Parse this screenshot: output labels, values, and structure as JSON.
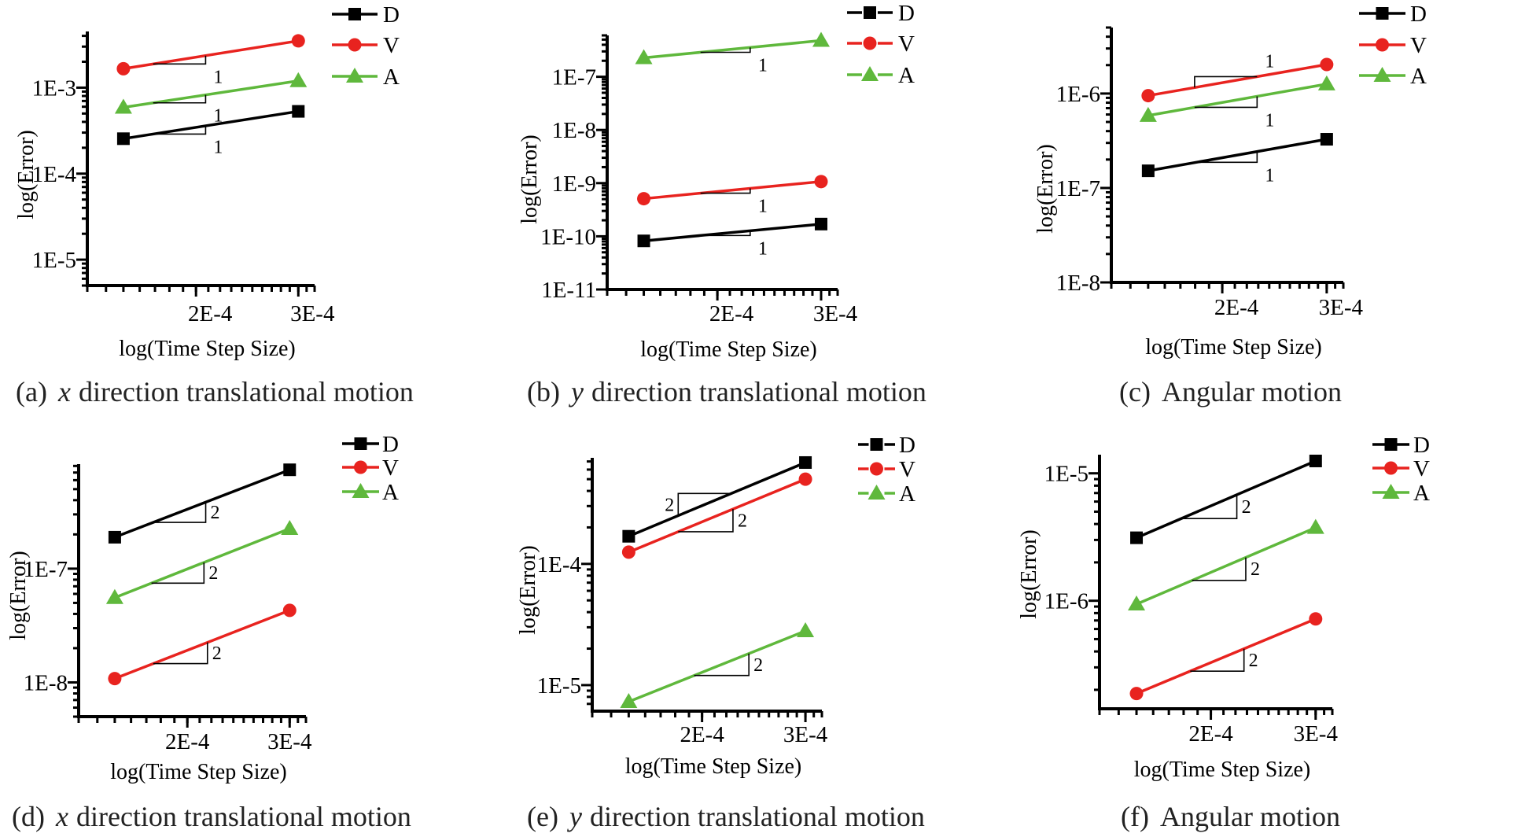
{
  "colors": {
    "D": "#000000",
    "V": "#e8231f",
    "A": "#5fb83c"
  },
  "chart_data": [
    {
      "type": "line",
      "panel": "a",
      "caption": {
        "label": "(a)",
        "variable": "x",
        "text": "direction translational motion"
      },
      "xlabel": "log(Time Step Size)",
      "ylabel": "log(Error)",
      "xscale": "log",
      "yscale": "log",
      "xlim": [
        0.00013,
        0.00032
      ],
      "ylim": [
        5e-06,
        0.0045
      ],
      "xticks": [
        {
          "value": 0.0002,
          "label": "2E-4"
        },
        {
          "value": 0.0003,
          "label": "3E-4"
        }
      ],
      "yticks": [
        {
          "value": 1e-05,
          "label": "1E-5"
        },
        {
          "value": 0.0001,
          "label": "1E-4"
        },
        {
          "value": 0.001,
          "label": "1E-3"
        }
      ],
      "legend": "top-right",
      "x": [
        0.00015,
        0.0003
      ],
      "series": [
        {
          "name": "D",
          "marker": "square",
          "values": [
            0.000255,
            0.00053
          ],
          "slope_label": "1"
        },
        {
          "name": "V",
          "marker": "circle",
          "values": [
            0.00166,
            0.0035
          ],
          "slope_label": "1"
        },
        {
          "name": "A",
          "marker": "triangle",
          "values": [
            0.00059,
            0.0012
          ],
          "slope_label": "1"
        }
      ]
    },
    {
      "type": "line",
      "panel": "b",
      "caption": {
        "label": "(b)",
        "variable": "y",
        "text": "direction translational motion"
      },
      "xlabel": "log(Time Step Size)",
      "ylabel": "log(Error)",
      "xscale": "log",
      "yscale": "log",
      "xlim": [
        0.00013,
        0.00032
      ],
      "ylim": [
        1e-11,
        6e-07
      ],
      "xticks": [
        {
          "value": 0.0002,
          "label": "2E-4"
        },
        {
          "value": 0.0003,
          "label": "3E-4"
        }
      ],
      "yticks": [
        {
          "value": 1e-11,
          "label": "1E-11"
        },
        {
          "value": 1e-10,
          "label": "1E-10"
        },
        {
          "value": 1e-09,
          "label": "1E-9"
        },
        {
          "value": 1e-08,
          "label": "1E-8"
        },
        {
          "value": 1e-07,
          "label": "1E-7"
        }
      ],
      "legend": "top-right",
      "x": [
        0.00015,
        0.0003
      ],
      "series": [
        {
          "name": "D",
          "marker": "square",
          "values": [
            8.2e-11,
            1.7e-10
          ],
          "slope_label": "1"
        },
        {
          "name": "V",
          "marker": "circle",
          "values": [
            5.1e-10,
            1.07e-09
          ],
          "slope_label": "1"
        },
        {
          "name": "A",
          "marker": "triangle",
          "values": [
            2.27e-07,
            4.8e-07
          ],
          "slope_label": "1"
        }
      ]
    },
    {
      "type": "line",
      "panel": "c",
      "caption": {
        "label": "(c)",
        "variable": "",
        "text": "Angular motion"
      },
      "xlabel": "log(Time Step Size)",
      "ylabel": "log(Error)",
      "xscale": "log",
      "yscale": "log",
      "xlim": [
        0.00013,
        0.00032
      ],
      "ylim": [
        1e-08,
        5e-06
      ],
      "xticks": [
        {
          "value": 0.0002,
          "label": "2E-4"
        },
        {
          "value": 0.0003,
          "label": "3E-4"
        }
      ],
      "yticks": [
        {
          "value": 1e-08,
          "label": "1E-8"
        },
        {
          "value": 1e-07,
          "label": "1E-7"
        },
        {
          "value": 1e-06,
          "label": "1E-6"
        }
      ],
      "legend": "top-right",
      "x": [
        0.00015,
        0.0003
      ],
      "series": [
        {
          "name": "D",
          "marker": "square",
          "values": [
            1.52e-07,
            3.28e-07
          ],
          "slope_label": "1"
        },
        {
          "name": "V",
          "marker": "circle",
          "values": [
            9.5e-07,
            2.03e-06
          ],
          "slope_label": "1"
        },
        {
          "name": "A",
          "marker": "triangle",
          "values": [
            5.85e-07,
            1.26e-06
          ],
          "slope_label": "1"
        }
      ]
    },
    {
      "type": "line",
      "panel": "d",
      "caption": {
        "label": "(d)",
        "variable": "x",
        "text": "direction translational motion"
      },
      "xlabel": "log(Time Step Size)",
      "ylabel": "log(Error)",
      "xscale": "log",
      "yscale": "log",
      "xlim": [
        0.00013,
        0.00032
      ],
      "ylim": [
        5e-09,
        8.3e-07
      ],
      "xticks": [
        {
          "value": 0.0002,
          "label": "2E-4"
        },
        {
          "value": 0.0003,
          "label": "3E-4"
        }
      ],
      "yticks": [
        {
          "value": 1e-08,
          "label": "1E-8"
        },
        {
          "value": 1e-07,
          "label": "1E-7"
        }
      ],
      "legend": "top-right",
      "x": [
        0.00015,
        0.0003
      ],
      "series": [
        {
          "name": "D",
          "marker": "square",
          "values": [
            1.89e-07,
            7.4e-07
          ],
          "slope_label": "2"
        },
        {
          "name": "V",
          "marker": "circle",
          "values": [
            1.08e-08,
            4.3e-08
          ],
          "slope_label": "2"
        },
        {
          "name": "A",
          "marker": "triangle",
          "values": [
            5.56e-08,
            2.25e-07
          ],
          "slope_label": "2"
        }
      ]
    },
    {
      "type": "line",
      "panel": "e",
      "caption": {
        "label": "(e)",
        "variable": "y",
        "text": "direction translational motion"
      },
      "xlabel": "log(Time Step Size)",
      "ylabel": "log(Error)",
      "xscale": "log",
      "yscale": "log",
      "xlim": [
        0.00013,
        0.00032
      ],
      "ylim": [
        6.1e-06,
        0.00075
      ],
      "xticks": [
        {
          "value": 0.0002,
          "label": "2E-4"
        },
        {
          "value": 0.0003,
          "label": "3E-4"
        }
      ],
      "yticks": [
        {
          "value": 1e-05,
          "label": "1E-5"
        },
        {
          "value": 0.0001,
          "label": "1E-4"
        }
      ],
      "legend": "top-right",
      "x": [
        0.00015,
        0.0003
      ],
      "series": [
        {
          "name": "D",
          "marker": "square",
          "values": [
            0.000169,
            0.000686
          ],
          "slope_label": "2"
        },
        {
          "name": "V",
          "marker": "circle",
          "values": [
            0.000125,
            0.0005
          ],
          "slope_label": "2"
        },
        {
          "name": "A",
          "marker": "triangle",
          "values": [
            7.3e-06,
            2.8e-05
          ],
          "slope_label": "2"
        }
      ]
    },
    {
      "type": "line",
      "panel": "f",
      "caption": {
        "label": "(f)",
        "variable": "",
        "text": "Angular motion"
      },
      "xlabel": "log(Time Step Size)",
      "ylabel": "log(Error)",
      "xscale": "log",
      "yscale": "log",
      "xlim": [
        0.00013,
        0.00032
      ],
      "ylim": [
        1.42e-07,
        1.4e-05
      ],
      "xticks": [
        {
          "value": 0.0002,
          "label": "2E-4"
        },
        {
          "value": 0.0003,
          "label": "3E-4"
        }
      ],
      "yticks": [
        {
          "value": 1e-06,
          "label": "1E-6"
        },
        {
          "value": 1e-05,
          "label": "1E-5"
        }
      ],
      "legend": "top-right",
      "x": [
        0.00015,
        0.0003
      ],
      "series": [
        {
          "name": "D",
          "marker": "square",
          "values": [
            3.12e-06,
            1.25e-05
          ],
          "slope_label": "2"
        },
        {
          "name": "V",
          "marker": "circle",
          "values": [
            1.87e-07,
            7.2e-07
          ],
          "slope_label": "2"
        },
        {
          "name": "A",
          "marker": "triangle",
          "values": [
            9.4e-07,
            3.75e-06
          ],
          "slope_label": "2"
        }
      ]
    }
  ]
}
